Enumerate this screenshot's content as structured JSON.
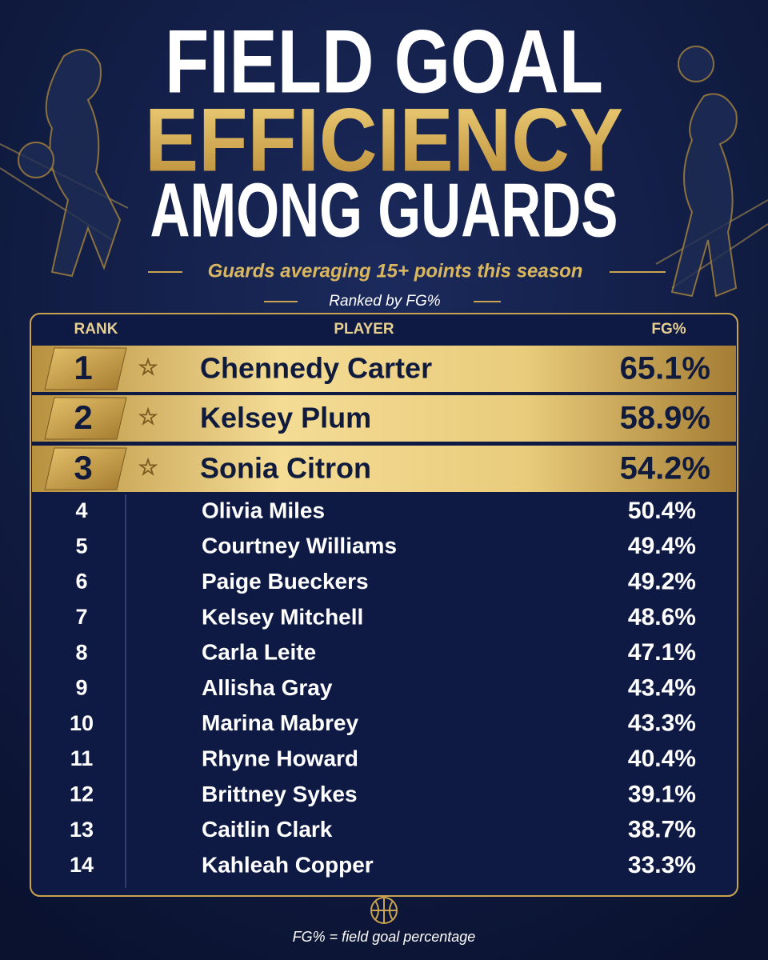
{
  "header": {
    "title_lines": [
      "FIELD GOAL",
      "EFFICIENCY",
      "AMONG GUARDS"
    ],
    "subtitle": "Guards averaging 15+ points this season",
    "ranked_by": "Ranked by FG%"
  },
  "table": {
    "columns": [
      "RANK",
      "PLAYER",
      "FG%"
    ],
    "rows": [
      [
        "1",
        "Chennedy Carter",
        "65.1%"
      ],
      [
        "2",
        "Kelsey Plum",
        "58.9%"
      ],
      [
        "3",
        "Sonia Citron",
        "54.2%"
      ],
      [
        "4",
        "Olivia Miles",
        "50.4%"
      ],
      [
        "5",
        "Courtney Williams",
        "49.4%"
      ],
      [
        "6",
        "Paige Bueckers",
        "49.2%"
      ],
      [
        "7",
        "Kelsey Mitchell",
        "48.6%"
      ],
      [
        "8",
        "Carla Leite",
        "47.1%"
      ],
      [
        "9",
        "Allisha Gray",
        "43.4%"
      ],
      [
        "10",
        "Marina Mabrey",
        "43.3%"
      ],
      [
        "11",
        "Rhyne Howard",
        "40.4%"
      ],
      [
        "12",
        "Brittney Sykes",
        "39.1%"
      ],
      [
        "13",
        "Caitlin Clark",
        "38.7%"
      ],
      [
        "14",
        "Kahleah Copper",
        "33.3%"
      ]
    ]
  },
  "footer": {
    "note": "FG% = field goal percentage"
  }
}
